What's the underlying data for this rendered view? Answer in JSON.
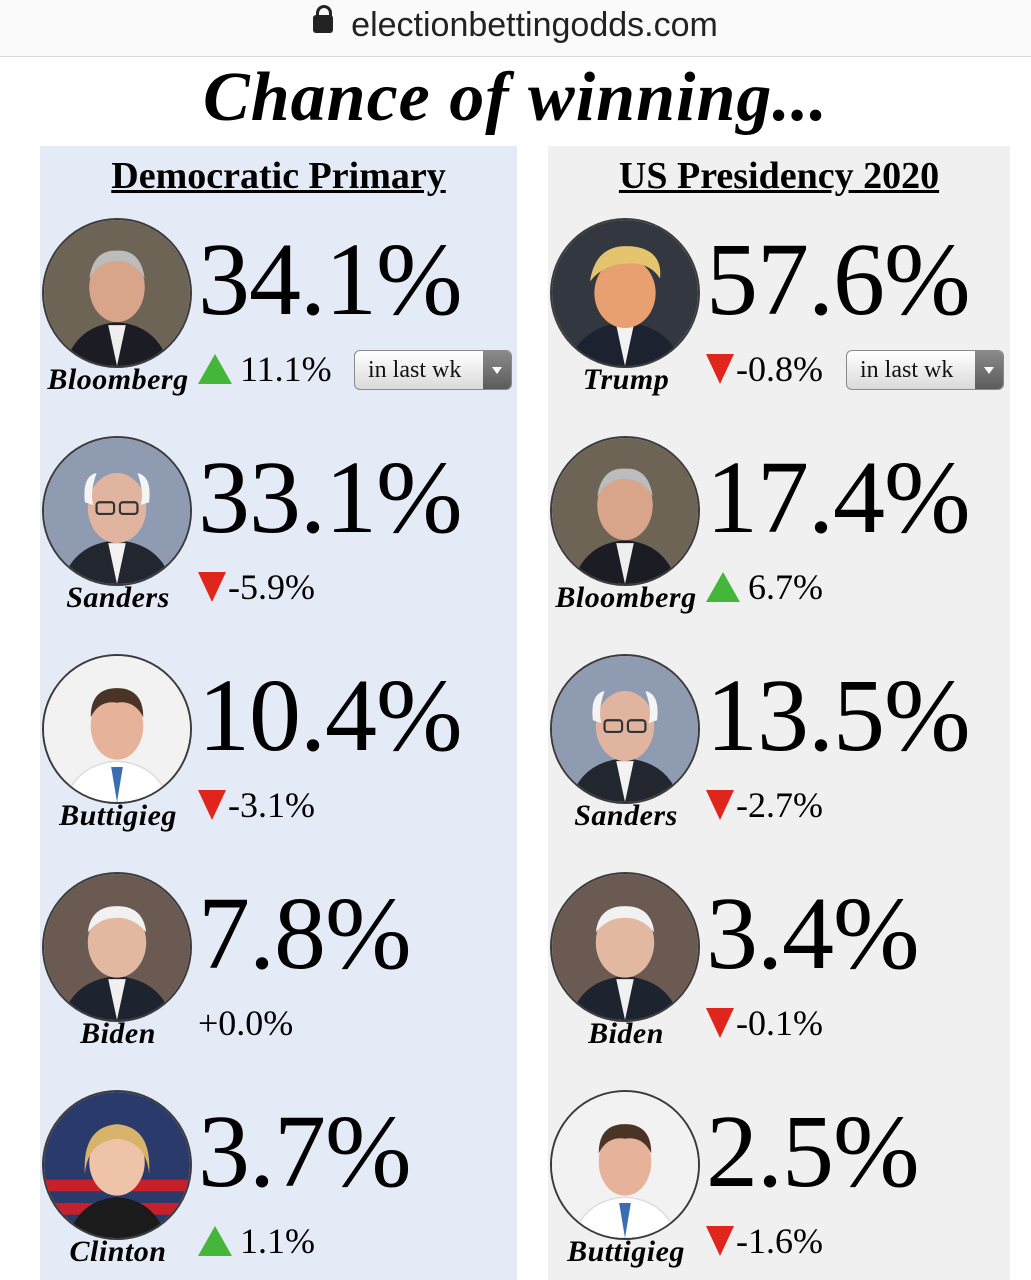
{
  "browser": {
    "url": "electionbettingodds.com"
  },
  "page_title": "Chance of winning...",
  "period_select": {
    "value": "in last wk"
  },
  "columns": [
    {
      "heading": "Democratic Primary",
      "candidates": [
        {
          "name": "Bloomberg",
          "pct": "34.1%",
          "change": "11.1%",
          "direction": "up"
        },
        {
          "name": "Sanders",
          "pct": "33.1%",
          "change": "-5.9%",
          "direction": "down"
        },
        {
          "name": "Buttigieg",
          "pct": "10.4%",
          "change": "-3.1%",
          "direction": "down"
        },
        {
          "name": "Biden",
          "pct": "7.8%",
          "change": "+0.0%",
          "direction": "none"
        },
        {
          "name": "Clinton",
          "pct": "3.7%",
          "change": "1.1%",
          "direction": "up"
        }
      ]
    },
    {
      "heading": "US Presidency 2020",
      "candidates": [
        {
          "name": "Trump",
          "pct": "57.6%",
          "change": "-0.8%",
          "direction": "down"
        },
        {
          "name": "Bloomberg",
          "pct": "17.4%",
          "change": "6.7%",
          "direction": "up"
        },
        {
          "name": "Sanders",
          "pct": "13.5%",
          "change": "-2.7%",
          "direction": "down"
        },
        {
          "name": "Biden",
          "pct": "3.4%",
          "change": "-0.1%",
          "direction": "down"
        },
        {
          "name": "Buttigieg",
          "pct": "2.5%",
          "change": "-1.6%",
          "direction": "down"
        }
      ]
    }
  ],
  "colors": {
    "up": "#44b63a",
    "down": "#e0261c",
    "left_panel": "#e4eaf6",
    "right_panel": "#f0f0f0"
  }
}
